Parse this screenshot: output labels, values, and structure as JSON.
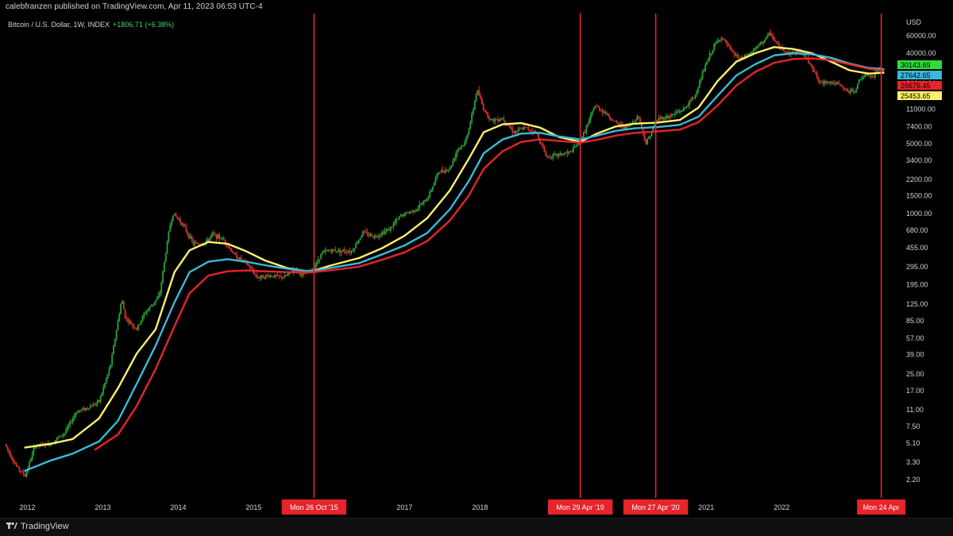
{
  "header": {
    "published_text": "calebfranzen published on TradingView.com, Apr 11, 2023 06:53 UTC-4"
  },
  "legend": {
    "symbol": "Bitcoin / U.S. Dollar, 1W, INDEX",
    "change": "+1806.71 (+6.38%)"
  },
  "footer": {
    "brand": "TradingView"
  },
  "colors": {
    "background": "#000000",
    "candle_up": "#26a63a",
    "candle_down": "#d6322e",
    "ma_yellow": "#fdf06e",
    "ma_cyan": "#3cb8d8",
    "ma_red": "#e5242b",
    "vline": "#e5242b"
  },
  "chart_data": {
    "type": "candlestick",
    "title": "Bitcoin / U.S. Dollar, 1W, INDEX",
    "y_scale": "log",
    "y_unit_label": "USD",
    "ylim": [
      1.8,
      80000
    ],
    "xlim": [
      2011.7,
      2023.45
    ],
    "grid": false,
    "y_ticks": [
      "60000.00",
      "40000.00",
      "20000.00",
      "11000.00",
      "7400.00",
      "5000.00",
      "3400.00",
      "2200.00",
      "1500.00",
      "1000.00",
      "680.00",
      "455.00",
      "295.00",
      "195.00",
      "125.00",
      "85.00",
      "57.00",
      "39.00",
      "25.00",
      "17.00",
      "11.00",
      "7.50",
      "5.10",
      "3.30",
      "2.20"
    ],
    "x_ticks": [
      "2012",
      "2013",
      "2014",
      "2015",
      "2017",
      "2018",
      "2021",
      "2022"
    ],
    "x_tick_positions": [
      2012.0,
      2013.0,
      2014.0,
      2015.0,
      2017.0,
      2018.0,
      2021.0,
      2022.0
    ],
    "price_labels": [
      {
        "value": "30143.69",
        "color": "#2fdc3a"
      },
      {
        "value": "27642.65",
        "color": "#3cb8d8"
      },
      {
        "value": "26676.45",
        "color": "#e5242b"
      },
      {
        "value": "25453.65",
        "color": "#fdf06e"
      }
    ],
    "vertical_markers": [
      {
        "x": 2015.8,
        "label": "Mon 26 Oct '15"
      },
      {
        "x": 2019.33,
        "label": "Mon 29 Apr '19"
      },
      {
        "x": 2020.33,
        "label": "Mon 27 Apr '20"
      },
      {
        "x": 2023.32,
        "label": "Mon 24 Apr"
      }
    ],
    "price_anchors": [
      [
        2011.7,
        5
      ],
      [
        2011.85,
        3
      ],
      [
        2011.97,
        2.4
      ],
      [
        2012.1,
        4.8
      ],
      [
        2012.3,
        5
      ],
      [
        2012.5,
        6.5
      ],
      [
        2012.65,
        10.5
      ],
      [
        2012.8,
        11.5
      ],
      [
        2012.95,
        13.3
      ],
      [
        2013.1,
        30
      ],
      [
        2013.25,
        140
      ],
      [
        2013.3,
        90
      ],
      [
        2013.45,
        70
      ],
      [
        2013.55,
        100
      ],
      [
        2013.75,
        150
      ],
      [
        2013.88,
        700
      ],
      [
        2013.93,
        1000
      ],
      [
        2014.05,
        800
      ],
      [
        2014.2,
        500
      ],
      [
        2014.35,
        500
      ],
      [
        2014.45,
        620
      ],
      [
        2014.6,
        550
      ],
      [
        2014.75,
        380
      ],
      [
        2014.9,
        320
      ],
      [
        2015.05,
        230
      ],
      [
        2015.2,
        240
      ],
      [
        2015.4,
        230
      ],
      [
        2015.55,
        280
      ],
      [
        2015.65,
        240
      ],
      [
        2015.8,
        290
      ],
      [
        2015.9,
        400
      ],
      [
        2016.0,
        430
      ],
      [
        2016.3,
        420
      ],
      [
        2016.45,
        650
      ],
      [
        2016.6,
        590
      ],
      [
        2016.8,
        700
      ],
      [
        2016.95,
        950
      ],
      [
        2017.15,
        1100
      ],
      [
        2017.3,
        1400
      ],
      [
        2017.45,
        2600
      ],
      [
        2017.6,
        2800
      ],
      [
        2017.7,
        4400
      ],
      [
        2017.8,
        5000
      ],
      [
        2017.9,
        10000
      ],
      [
        2017.96,
        17500
      ],
      [
        2018.05,
        11000
      ],
      [
        2018.15,
        8500
      ],
      [
        2018.3,
        9000
      ],
      [
        2018.45,
        6500
      ],
      [
        2018.6,
        7200
      ],
      [
        2018.75,
        6400
      ],
      [
        2018.88,
        3700
      ],
      [
        2019.0,
        3800
      ],
      [
        2019.2,
        4100
      ],
      [
        2019.33,
        5300
      ],
      [
        2019.45,
        8500
      ],
      [
        2019.52,
        12000
      ],
      [
        2019.65,
        10300
      ],
      [
        2019.8,
        8000
      ],
      [
        2019.95,
        7200
      ],
      [
        2020.1,
        9500
      ],
      [
        2020.2,
        5000
      ],
      [
        2020.35,
        8800
      ],
      [
        2020.5,
        9300
      ],
      [
        2020.7,
        11000
      ],
      [
        2020.85,
        15000
      ],
      [
        2020.98,
        29000
      ],
      [
        2021.1,
        47000
      ],
      [
        2021.2,
        58000
      ],
      [
        2021.35,
        40000
      ],
      [
        2021.45,
        35000
      ],
      [
        2021.55,
        38000
      ],
      [
        2021.7,
        48000
      ],
      [
        2021.85,
        63000
      ],
      [
        2021.95,
        47000
      ],
      [
        2022.1,
        40000
      ],
      [
        2022.25,
        42000
      ],
      [
        2022.4,
        30000
      ],
      [
        2022.5,
        20000
      ],
      [
        2022.6,
        21000
      ],
      [
        2022.75,
        19500
      ],
      [
        2022.88,
        16500
      ],
      [
        2022.97,
        16800
      ],
      [
        2023.05,
        23000
      ],
      [
        2023.15,
        24000
      ],
      [
        2023.22,
        23000
      ],
      [
        2023.28,
        28000
      ],
      [
        2023.32,
        30000
      ]
    ],
    "series": [
      {
        "color": "#fdf06e",
        "points": [
          [
            2011.97,
            4.6
          ],
          [
            2012.3,
            5
          ],
          [
            2012.6,
            5.6
          ],
          [
            2012.95,
            9
          ],
          [
            2013.2,
            18
          ],
          [
            2013.45,
            40
          ],
          [
            2013.7,
            70
          ],
          [
            2013.95,
            260
          ],
          [
            2014.15,
            430
          ],
          [
            2014.4,
            520
          ],
          [
            2014.65,
            500
          ],
          [
            2014.9,
            420
          ],
          [
            2015.15,
            340
          ],
          [
            2015.45,
            285
          ],
          [
            2015.75,
            262
          ],
          [
            2016.0,
            300
          ],
          [
            2016.4,
            360
          ],
          [
            2016.7,
            450
          ],
          [
            2017.0,
            600
          ],
          [
            2017.3,
            900
          ],
          [
            2017.6,
            1700
          ],
          [
            2017.85,
            3500
          ],
          [
            2018.05,
            6500
          ],
          [
            2018.3,
            7800
          ],
          [
            2018.55,
            8000
          ],
          [
            2018.8,
            7200
          ],
          [
            2019.05,
            5800
          ],
          [
            2019.33,
            5200
          ],
          [
            2019.55,
            6300
          ],
          [
            2019.8,
            7400
          ],
          [
            2020.05,
            7900
          ],
          [
            2020.35,
            8100
          ],
          [
            2020.65,
            8600
          ],
          [
            2020.9,
            11500
          ],
          [
            2021.15,
            21000
          ],
          [
            2021.4,
            33000
          ],
          [
            2021.65,
            40000
          ],
          [
            2021.9,
            46000
          ],
          [
            2022.15,
            44000
          ],
          [
            2022.4,
            40000
          ],
          [
            2022.65,
            33000
          ],
          [
            2022.9,
            27000
          ],
          [
            2023.15,
            25000
          ],
          [
            2023.35,
            25500
          ]
        ]
      },
      {
        "color": "#3cb8d8",
        "points": [
          [
            2011.97,
            2.7
          ],
          [
            2012.3,
            3.4
          ],
          [
            2012.6,
            4
          ],
          [
            2012.95,
            5.3
          ],
          [
            2013.2,
            8.5
          ],
          [
            2013.45,
            20
          ],
          [
            2013.7,
            48
          ],
          [
            2013.95,
            130
          ],
          [
            2014.15,
            260
          ],
          [
            2014.4,
            330
          ],
          [
            2014.65,
            350
          ],
          [
            2014.9,
            330
          ],
          [
            2015.15,
            305
          ],
          [
            2015.45,
            280
          ],
          [
            2015.75,
            265
          ],
          [
            2016.0,
            285
          ],
          [
            2016.4,
            320
          ],
          [
            2016.7,
            390
          ],
          [
            2017.0,
            480
          ],
          [
            2017.3,
            640
          ],
          [
            2017.6,
            1100
          ],
          [
            2017.85,
            2100
          ],
          [
            2018.05,
            4000
          ],
          [
            2018.3,
            5500
          ],
          [
            2018.55,
            6300
          ],
          [
            2018.8,
            6400
          ],
          [
            2019.05,
            5900
          ],
          [
            2019.33,
            5500
          ],
          [
            2019.55,
            6000
          ],
          [
            2019.8,
            6700
          ],
          [
            2020.05,
            7100
          ],
          [
            2020.35,
            7300
          ],
          [
            2020.65,
            7700
          ],
          [
            2020.9,
            9300
          ],
          [
            2021.15,
            15000
          ],
          [
            2021.4,
            24000
          ],
          [
            2021.65,
            31000
          ],
          [
            2021.9,
            38000
          ],
          [
            2022.15,
            40000
          ],
          [
            2022.4,
            39000
          ],
          [
            2022.65,
            36000
          ],
          [
            2022.9,
            31500
          ],
          [
            2023.15,
            28500
          ],
          [
            2023.35,
            27700
          ]
        ]
      },
      {
        "color": "#e5242b",
        "points": [
          [
            2012.9,
            4.4
          ],
          [
            2013.2,
            6.2
          ],
          [
            2013.45,
            12
          ],
          [
            2013.7,
            28
          ],
          [
            2013.95,
            75
          ],
          [
            2014.15,
            160
          ],
          [
            2014.4,
            240
          ],
          [
            2014.65,
            265
          ],
          [
            2014.9,
            270
          ],
          [
            2015.15,
            265
          ],
          [
            2015.45,
            260
          ],
          [
            2015.75,
            258
          ],
          [
            2016.0,
            270
          ],
          [
            2016.4,
            295
          ],
          [
            2016.7,
            345
          ],
          [
            2017.0,
            410
          ],
          [
            2017.3,
            530
          ],
          [
            2017.6,
            850
          ],
          [
            2017.85,
            1500
          ],
          [
            2018.05,
            2800
          ],
          [
            2018.3,
            4200
          ],
          [
            2018.55,
            5200
          ],
          [
            2018.8,
            5500
          ],
          [
            2019.05,
            5300
          ],
          [
            2019.33,
            5100
          ],
          [
            2019.55,
            5450
          ],
          [
            2019.8,
            6000
          ],
          [
            2020.05,
            6400
          ],
          [
            2020.35,
            6600
          ],
          [
            2020.65,
            6900
          ],
          [
            2020.9,
            8200
          ],
          [
            2021.15,
            12000
          ],
          [
            2021.4,
            19000
          ],
          [
            2021.65,
            26000
          ],
          [
            2021.9,
            32000
          ],
          [
            2022.15,
            35000
          ],
          [
            2022.4,
            35500
          ],
          [
            2022.65,
            34000
          ],
          [
            2022.9,
            31000
          ],
          [
            2023.15,
            28000
          ],
          [
            2023.35,
            26700
          ]
        ]
      }
    ]
  }
}
